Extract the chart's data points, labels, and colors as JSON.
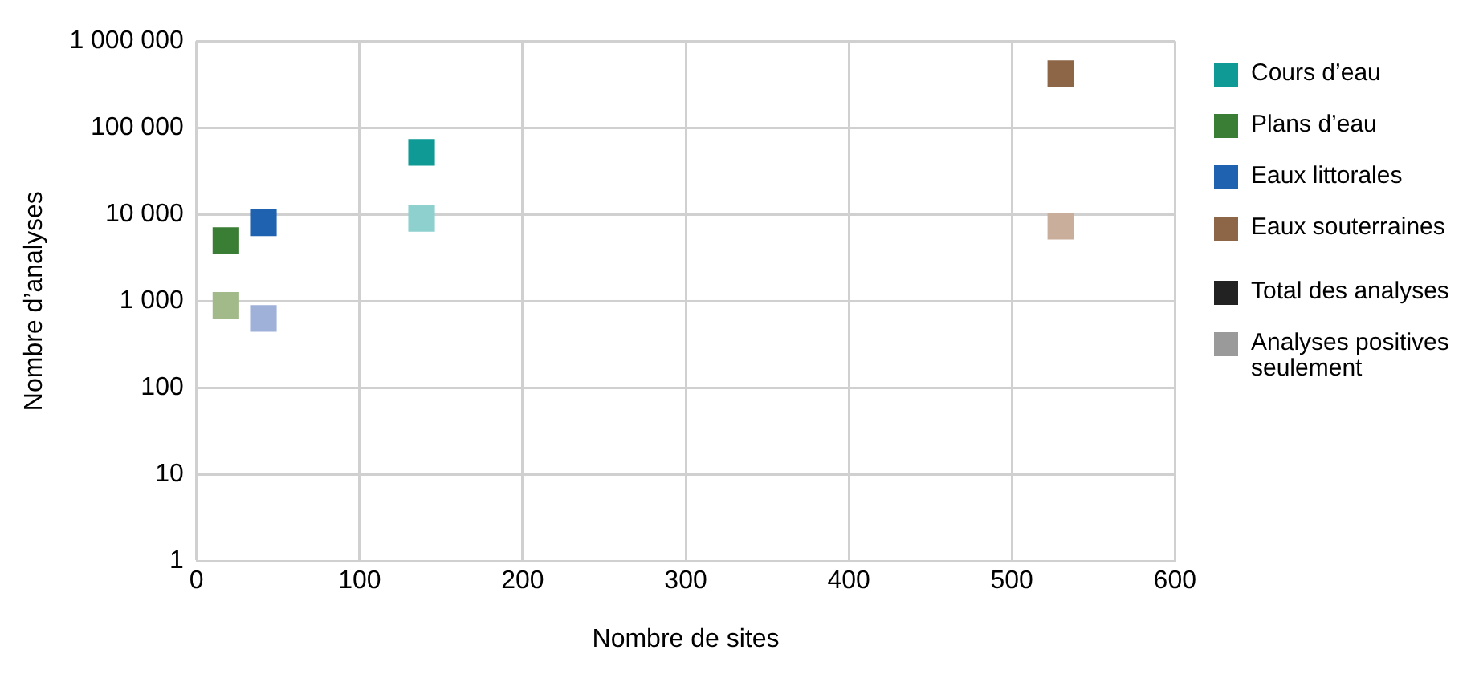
{
  "chart_data": {
    "type": "scatter",
    "xlabel": "Nombre de sites",
    "ylabel": "Nombre d’analyses",
    "xlim": [
      0,
      600
    ],
    "xticks": [
      0,
      100,
      200,
      300,
      400,
      500,
      600
    ],
    "ylim": [
      1,
      1000000
    ],
    "yticks": [
      {
        "value": 1,
        "label": "1"
      },
      {
        "value": 10,
        "label": "10"
      },
      {
        "value": 100,
        "label": "100"
      },
      {
        "value": 1000,
        "label": "1 000"
      },
      {
        "value": 10000,
        "label": "10 000"
      },
      {
        "value": 100000,
        "label": "100 000"
      },
      {
        "value": 1000000,
        "label": "1 000 000"
      }
    ],
    "log": "y",
    "grid": true,
    "legend": "right",
    "marker": "square",
    "series": [
      {
        "name": "Cours d’eau",
        "color": "#0f9a96",
        "colors": [
          "#0f9a96",
          "#8dd0ce"
        ],
        "x": [
          138,
          138
        ],
        "values": [
          52000,
          9000
        ]
      },
      {
        "name": "Plans d’eau",
        "color": "#3a7d35",
        "colors": [
          "#3a7d35",
          "#a2b98a"
        ],
        "x": [
          18,
          18
        ],
        "values": [
          5000,
          890
        ]
      },
      {
        "name": "Eaux littorales",
        "color": "#1f62b0",
        "colors": [
          "#1f62b0",
          "#9fb0d9"
        ],
        "x": [
          41,
          41
        ],
        "values": [
          8000,
          630
        ]
      },
      {
        "name": "Eaux souterraines",
        "color": "#8c6646",
        "colors": [
          "#8c6646",
          "#c9ae9c"
        ],
        "x": [
          530,
          530
        ],
        "values": [
          420000,
          7300
        ]
      }
    ],
    "annotations": [
      "Total des analyses",
      "Analyses positives seulement"
    ]
  }
}
